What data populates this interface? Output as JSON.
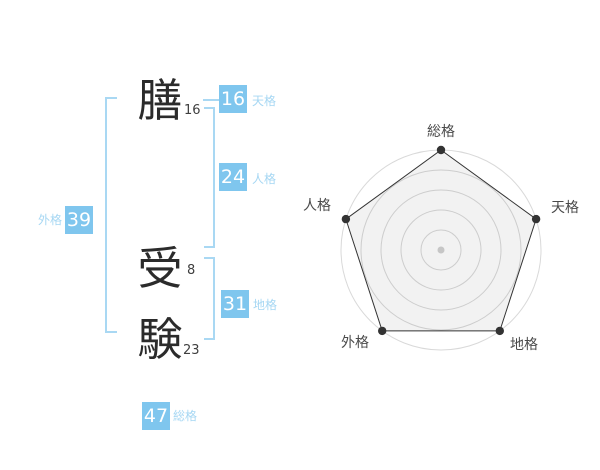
{
  "colors": {
    "background": "#ffffff",
    "badge_blue": "#7fc6ee",
    "badge_number_text": "#ffffff",
    "light_blue_label": "#a6d7f3",
    "bracket_blue": "#a9d8f3",
    "kanji_color": "#2b2b2b",
    "stroke_number_color": "#3f3f3f",
    "radar_grid": "#d9d9d9",
    "radar_line": "#333333",
    "radar_fill": "rgba(0,0,0,0.05)",
    "radar_vertex_dot": "#333333",
    "radar_center_dot": "#c6c6c6",
    "radar_label_color": "#4a4a4a"
  },
  "name_diagram": {
    "characters": [
      {
        "char": "膳",
        "strokes": "16"
      },
      {
        "char": "受",
        "strokes": "8"
      },
      {
        "char": "験",
        "strokes": "23"
      }
    ],
    "kaku_badges": [
      {
        "id": "tenkaku",
        "value": "16",
        "label": "天格",
        "side": "right"
      },
      {
        "id": "jinkaku",
        "value": "24",
        "label": "人格",
        "side": "right"
      },
      {
        "id": "chikaku",
        "value": "31",
        "label": "地格",
        "side": "right"
      },
      {
        "id": "gaikaku",
        "value": "39",
        "label": "外格",
        "side": "left"
      },
      {
        "id": "soukaku",
        "value": "47",
        "label": "総格",
        "side": "bottom"
      }
    ]
  },
  "chart_data": {
    "type": "radar",
    "title": "",
    "categories": [
      "総格",
      "天格",
      "地格",
      "外格",
      "人格"
    ],
    "values": [
      5,
      5,
      5,
      5,
      5
    ],
    "max_value": 5,
    "ring_count": 5,
    "start_axis": "top",
    "direction": "clockwise",
    "grid": "concentric-circles",
    "legend": "none",
    "kaku_numbers": {
      "総格": 47,
      "天格": 16,
      "地格": 31,
      "外格": 39,
      "人格": 24
    }
  }
}
